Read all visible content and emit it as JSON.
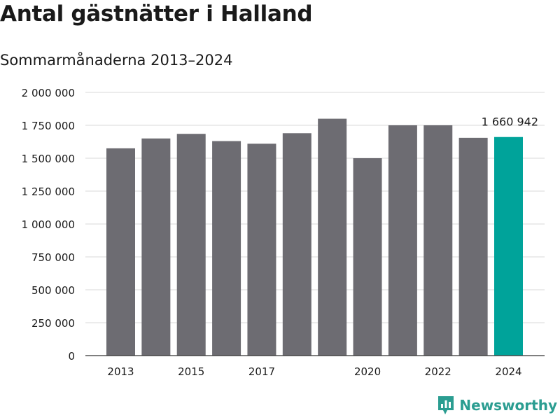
{
  "title": "Antal gästnätter i Halland",
  "subtitle": "Sommarmånaderna 2013–2024",
  "brand": {
    "name": "Newsworthy",
    "color": "#2b9d91",
    "icon": "newsworthy-logo-icon"
  },
  "chart_data": {
    "type": "bar",
    "categories": [
      "2013",
      "2014",
      "2015",
      "2016",
      "2017",
      "2018",
      "2019",
      "2020",
      "2021",
      "2022",
      "2023",
      "2024"
    ],
    "values": [
      1575000,
      1650000,
      1685000,
      1630000,
      1610000,
      1690000,
      1800000,
      1500000,
      1750000,
      1750000,
      1655000,
      1660942
    ],
    "x_tick_labels": [
      "2013",
      "",
      "2015",
      "",
      "2017",
      "",
      "",
      "2020",
      "",
      "2022",
      "",
      "2024"
    ],
    "y_ticks": [
      0,
      250000,
      500000,
      750000,
      1000000,
      1250000,
      1500000,
      1750000,
      2000000
    ],
    "y_tick_labels": [
      "0",
      "250 000",
      "500 000",
      "750 000",
      "1 000 000",
      "1 250 000",
      "1 500 000",
      "1 750 000",
      "2 000 000"
    ],
    "ylim": [
      0,
      2000000
    ],
    "grid": true,
    "bar_color": "#6d6c72",
    "highlight_color": "#00a39a",
    "highlight_index": 11,
    "annotation": {
      "index": 11,
      "text": "1 660 942"
    }
  }
}
